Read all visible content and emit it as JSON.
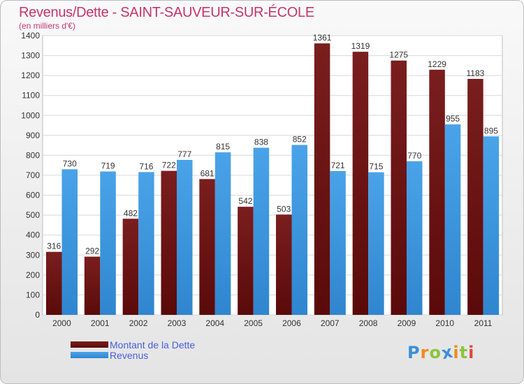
{
  "header": {
    "title": "Revenus/Dette - SAINT-SAUVEUR-SUR-ÉCOLE",
    "subtitle": "(en milliers d'€)"
  },
  "logo": {
    "letters": [
      "P",
      "r",
      "o",
      "x",
      "i",
      "t",
      "i"
    ],
    "colors": [
      "#3d8fd6",
      "#f08a1c",
      "#8cc43c",
      "#3d8fd6",
      "#f08a1c",
      "#8cc43c",
      "#e0463c"
    ]
  },
  "colors": {
    "dette": "#7a1e1e",
    "dette_dark": "#5a0a0a",
    "revenus": "#4aa3e8",
    "revenus_dark": "#2f86cf"
  },
  "chart_data": {
    "type": "bar",
    "title": "Revenus/Dette - SAINT-SAUVEUR-SUR-ÉCOLE",
    "ylabel": "(en milliers d'€)",
    "categories": [
      "2000",
      "2001",
      "2002",
      "2003",
      "2004",
      "2005",
      "2006",
      "2007",
      "2008",
      "2009",
      "2010",
      "2011"
    ],
    "series": [
      {
        "name": "Montant de la Dette",
        "values": [
          316,
          292,
          482,
          722,
          681,
          542,
          503,
          1361,
          1319,
          1275,
          1229,
          1183
        ]
      },
      {
        "name": "Revenus",
        "values": [
          730,
          719,
          716,
          777,
          815,
          838,
          852,
          721,
          715,
          770,
          955,
          895
        ]
      }
    ],
    "ylim": [
      0,
      1400
    ],
    "yticks": [
      0,
      100,
      200,
      300,
      400,
      500,
      600,
      700,
      800,
      900,
      1000,
      1100,
      1200,
      1300,
      1400
    ],
    "grid": true,
    "legend": "bottom-left"
  }
}
